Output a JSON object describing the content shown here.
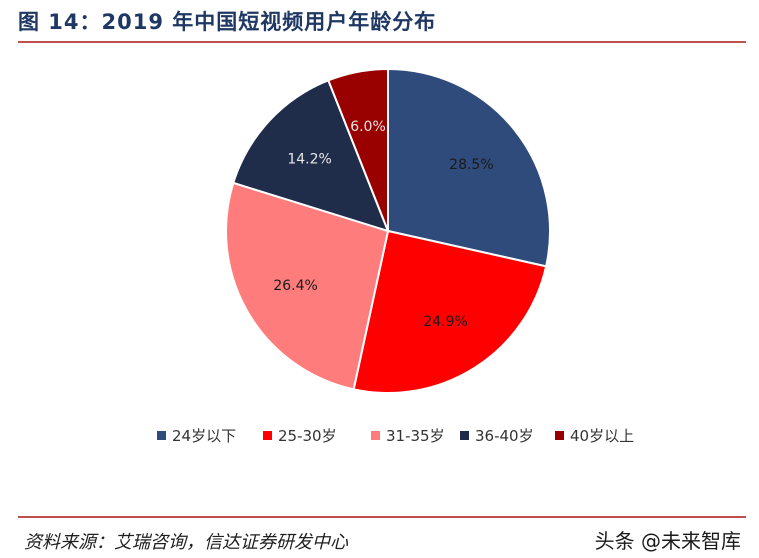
{
  "header": {
    "title": "图  14：2019 年中国短视频用户年龄分布"
  },
  "footer": {
    "source": "资料来源：艾瑞咨询，信达证券研发中心",
    "watermark": "头条 @未来智库"
  },
  "chart_data": {
    "type": "pie",
    "title": "图  14：2019 年中国短视频用户年龄分布",
    "categories": [
      "24岁以下",
      "25-30岁",
      "31-35岁",
      "36-40岁",
      "40岁以上"
    ],
    "values": [
      28.5,
      24.9,
      26.4,
      14.2,
      6.0
    ],
    "labels": [
      "28.5%",
      "24.9%",
      "26.4%",
      "14.2%",
      "6.0%"
    ],
    "colors": [
      "#2f4b7c",
      "#ff0000",
      "#ff7c7c",
      "#1f2d4b",
      "#990000"
    ],
    "label_colors": [
      "#1a1a1a",
      "#1a1a1a",
      "#1a1a1a",
      "#e6e6e6",
      "#e6e6e6"
    ],
    "start": "12 o'clock",
    "direction": "clockwise",
    "legend_position": "bottom"
  }
}
